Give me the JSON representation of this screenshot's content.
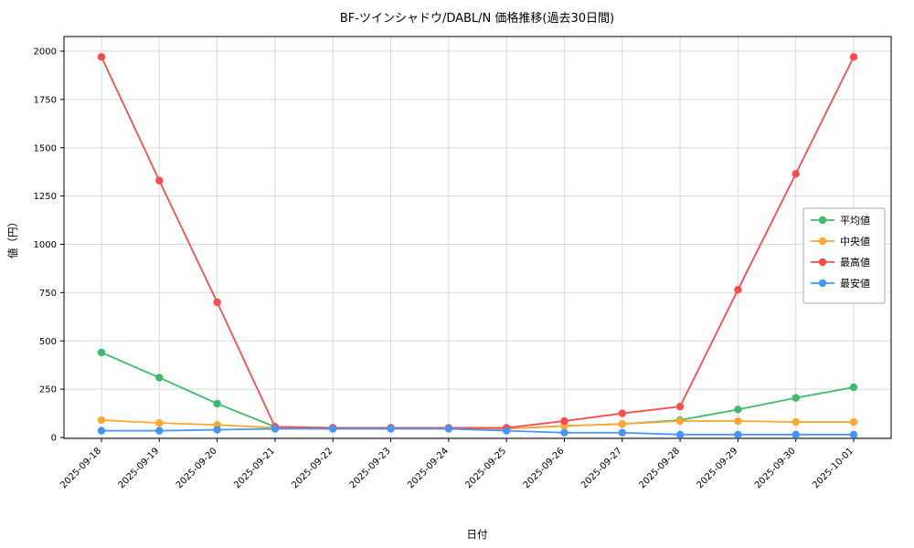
{
  "chart_data": {
    "type": "line",
    "title": "BF-ツインシャドウ/DABL/N 価格推移(過去30日間)",
    "xlabel": "日付",
    "ylabel": "値（円）",
    "x": [
      "2025-09-18",
      "2025-09-19",
      "2025-09-20",
      "2025-09-21",
      "2025-09-22",
      "2025-09-23",
      "2025-09-24",
      "2025-09-25",
      "2025-09-26",
      "2025-09-27",
      "2025-09-28",
      "2025-09-29",
      "2025-09-30",
      "2025-10-01"
    ],
    "ylim": [
      0,
      2000
    ],
    "yticks": [
      0,
      250,
      500,
      750,
      1000,
      1250,
      1500,
      1750,
      2000
    ],
    "grid": true,
    "legend_position": "center-right",
    "series": [
      {
        "name": "平均値",
        "color": "#3dbb6a",
        "values": [
          440,
          310,
          175,
          55,
          50,
          50,
          48,
          45,
          60,
          70,
          90,
          145,
          205,
          260
        ]
      },
      {
        "name": "中央値",
        "color": "#ffa733",
        "values": [
          90,
          75,
          65,
          50,
          50,
          48,
          48,
          45,
          60,
          70,
          85,
          85,
          80,
          80
        ]
      },
      {
        "name": "最高値",
        "color": "#fb4b4b",
        "values": [
          1970,
          1330,
          700,
          55,
          50,
          50,
          50,
          50,
          85,
          125,
          160,
          765,
          1365,
          1970
        ]
      },
      {
        "name": "最安値",
        "color": "#4596f5",
        "values": [
          35,
          35,
          40,
          45,
          45,
          45,
          45,
          35,
          25,
          25,
          15,
          15,
          15,
          15
        ]
      }
    ]
  }
}
